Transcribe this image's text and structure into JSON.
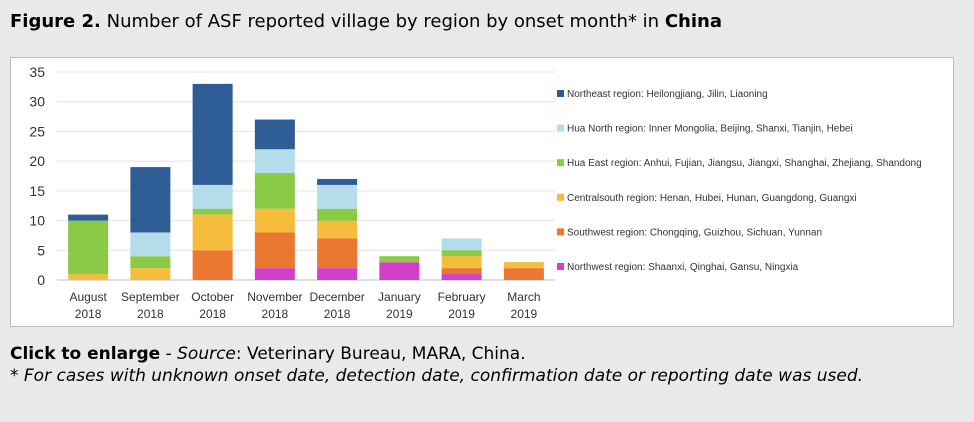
{
  "figure": {
    "label": "Figure 2.",
    "title_text": " Number of ASF reported village by region by onset month* in ",
    "title_country": "China"
  },
  "caption": {
    "enlarge": "Click to enlarge",
    "dash": " - ",
    "source_label": "Source",
    "source_text": ": Veterinary Bureau, MARA, China.",
    "footnote": "* For cases with unknown onset date, detection date, confirmation date or reporting date was used."
  },
  "colors": {
    "northeast": "#2e5d95",
    "hua_north": "#b4dceb",
    "hua_east": "#8acb45",
    "centralsouth": "#f5bd3b",
    "southwest": "#ec7731",
    "northwest": "#d13fcb"
  },
  "chart_data": {
    "type": "bar",
    "stacked": true,
    "categories": [
      [
        "August",
        "2018"
      ],
      [
        "September",
        "2018"
      ],
      [
        "October",
        "2018"
      ],
      [
        "November",
        "2018"
      ],
      [
        "December",
        "2018"
      ],
      [
        "January",
        "2019"
      ],
      [
        "February",
        "2019"
      ],
      [
        "March",
        "2019"
      ]
    ],
    "ylim": [
      0,
      35
    ],
    "yticks": [
      0,
      5,
      10,
      15,
      20,
      25,
      30,
      35
    ],
    "grid": true,
    "legend_position": "right",
    "series": [
      {
        "name": "Northwest region: Shaanxi, Qinghai, Gansu, Ningxia",
        "key": "northwest",
        "values": [
          0,
          0,
          0,
          2,
          2,
          3,
          1,
          0
        ]
      },
      {
        "name": "Southwest region: Chongqing, Guizhou, Sichuan, Yunnan",
        "key": "southwest",
        "values": [
          0,
          0,
          5,
          6,
          5,
          0,
          1,
          2
        ]
      },
      {
        "name": "Centralsouth region: Henan, Hubei, Hunan, Guangdong, Guangxi",
        "key": "centralsouth",
        "values": [
          1,
          2,
          6,
          4,
          3,
          0,
          2,
          1
        ]
      },
      {
        "name": "Hua East region: Anhui, Fujian, Jiangsu, Jiangxi, Shanghai, Zhejiang, Shandong",
        "key": "hua_east",
        "values": [
          9,
          2,
          1,
          6,
          2,
          1,
          1,
          0
        ]
      },
      {
        "name": "Hua North region: Inner Mongolia, Beijing, Shanxi, Tianjin, Hebei",
        "key": "hua_north",
        "values": [
          0,
          4,
          4,
          4,
          4,
          0,
          2,
          0
        ]
      },
      {
        "name": "Northeast region: Heilongjiang, Jilin, Liaoning",
        "key": "northeast",
        "values": [
          1,
          11,
          17,
          5,
          1,
          0,
          0,
          0
        ]
      }
    ]
  }
}
